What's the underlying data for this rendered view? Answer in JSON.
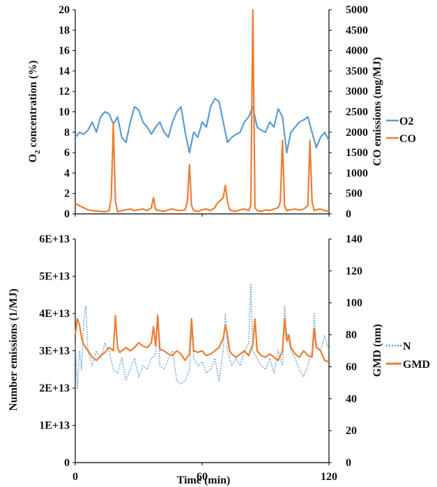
{
  "colors": {
    "blue": "#5b9bd5",
    "orange": "#ed7d31",
    "axis": "#000000"
  },
  "shared_xlabel": "Time (min)",
  "chart_data": [
    {
      "type": "line",
      "x_ticks": [
        "0",
        "60",
        "120"
      ],
      "xlim": [
        0,
        120
      ],
      "ylabel_left_main": "O",
      "ylabel_left_sub": "2",
      "ylabel_left_rest": " concentration (%)",
      "ylabel_right": "CO emissions (mg/MJ)",
      "y_left_ticks": [
        "0",
        "2",
        "4",
        "6",
        "8",
        "10",
        "12",
        "14",
        "16",
        "18",
        "20"
      ],
      "ylim_left": [
        0,
        20
      ],
      "y_right_ticks": [
        "0",
        "500",
        "1000",
        "1500",
        "2000",
        "2500",
        "3000",
        "3500",
        "4000",
        "4500",
        "5000"
      ],
      "ylim_right": [
        0,
        5000
      ],
      "legend_position": "right",
      "series": [
        {
          "name": "O2",
          "axis": "left",
          "style": "solid",
          "x": [
            0,
            2,
            4,
            6,
            8,
            10,
            12,
            14,
            16,
            18,
            20,
            22,
            24,
            26,
            28,
            30,
            32,
            34,
            36,
            38,
            40,
            42,
            44,
            46,
            48,
            50,
            52,
            54,
            56,
            58,
            60,
            62,
            64,
            66,
            68,
            70,
            72,
            74,
            76,
            78,
            80,
            82,
            84,
            86,
            88,
            90,
            92,
            94,
            96,
            98,
            100,
            102,
            104,
            106,
            108,
            110,
            112,
            114,
            116,
            118,
            120
          ],
          "values": [
            7.5,
            8,
            7.8,
            8.2,
            9,
            8,
            9.5,
            10,
            9.8,
            8.8,
            9.5,
            7.5,
            7,
            9,
            10.5,
            10.2,
            9,
            8.5,
            7.8,
            8.5,
            9,
            8,
            7.5,
            9,
            10,
            10.5,
            8,
            6,
            8,
            7.5,
            9,
            8.5,
            10.5,
            11.3,
            11,
            9,
            7,
            7.5,
            7.8,
            8,
            9,
            9.5,
            10.5,
            8.5,
            8.2,
            8,
            9,
            8.5,
            10.3,
            9.5,
            6,
            8,
            8.5,
            9,
            9.2,
            9.5,
            8,
            6.5,
            7.5,
            8,
            7.2
          ]
        },
        {
          "name": "CO",
          "axis": "right",
          "style": "solid",
          "x": [
            0,
            2,
            4,
            6,
            8,
            10,
            12,
            14,
            16,
            17,
            18,
            19,
            20,
            22,
            24,
            26,
            28,
            30,
            32,
            34,
            36,
            37,
            38,
            40,
            42,
            44,
            46,
            48,
            50,
            52,
            53,
            54,
            55,
            56,
            58,
            60,
            62,
            64,
            66,
            67,
            68,
            70,
            71,
            72,
            73,
            74,
            76,
            78,
            80,
            82,
            83,
            84,
            85,
            86,
            88,
            90,
            92,
            94,
            96,
            97,
            98,
            99,
            100,
            102,
            104,
            106,
            108,
            110,
            111,
            112,
            113,
            114,
            116,
            118,
            120
          ],
          "values": [
            250,
            200,
            150,
            100,
            80,
            70,
            60,
            50,
            80,
            400,
            2200,
            300,
            50,
            80,
            100,
            120,
            80,
            100,
            120,
            80,
            150,
            400,
            100,
            80,
            60,
            100,
            120,
            90,
            80,
            100,
            300,
            1200,
            200,
            80,
            60,
            100,
            120,
            80,
            150,
            250,
            300,
            400,
            700,
            300,
            100,
            80,
            60,
            100,
            120,
            80,
            200,
            5000,
            150,
            80,
            60,
            100,
            80,
            120,
            150,
            300,
            1800,
            200,
            80,
            100,
            120,
            90,
            120,
            200,
            1800,
            300,
            80,
            100,
            120,
            80,
            60
          ]
        }
      ]
    },
    {
      "type": "line",
      "x_ticks": [
        "0",
        "60",
        "120"
      ],
      "xlim": [
        0,
        120
      ],
      "ylabel_left": "Number emissions (1/MJ)",
      "ylabel_right": "GMD (nm)",
      "y_left_ticks": [
        "0",
        "1E+13",
        "2E+13",
        "3E+13",
        "4E+13",
        "5E+13",
        "6E+13"
      ],
      "ylim_left": [
        0,
        60000000000000.0
      ],
      "y_right_ticks": [
        "0",
        "20",
        "40",
        "60",
        "80",
        "100",
        "120",
        "140"
      ],
      "ylim_right": [
        0,
        140
      ],
      "legend_position": "right",
      "series": [
        {
          "name": "N",
          "axis": "left",
          "style": "dotted",
          "x": [
            0,
            1,
            2,
            3,
            4,
            5,
            6,
            8,
            10,
            12,
            14,
            16,
            18,
            20,
            22,
            24,
            26,
            28,
            30,
            32,
            34,
            36,
            38,
            39,
            40,
            42,
            44,
            46,
            48,
            50,
            52,
            54,
            55,
            56,
            58,
            60,
            62,
            64,
            66,
            68,
            70,
            71,
            72,
            74,
            76,
            78,
            80,
            82,
            83,
            84,
            86,
            88,
            90,
            92,
            94,
            96,
            98,
            99,
            100,
            102,
            104,
            106,
            108,
            110,
            112,
            113,
            114,
            116,
            118,
            120
          ],
          "values": [
            32000000000000.0,
            20000000000000.0,
            30000000000000.0,
            25000000000000.0,
            38000000000000.0,
            42000000000000.0,
            30000000000000.0,
            26000000000000.0,
            30000000000000.0,
            28000000000000.0,
            32000000000000.0,
            30000000000000.0,
            25000000000000.0,
            24000000000000.0,
            28000000000000.0,
            22000000000000.0,
            25000000000000.0,
            28000000000000.0,
            23000000000000.0,
            26000000000000.0,
            25000000000000.0,
            28000000000000.0,
            29000000000000.0,
            40000000000000.0,
            26000000000000.0,
            25000000000000.0,
            28000000000000.0,
            30000000000000.0,
            22000000000000.0,
            21000000000000.0,
            22000000000000.0,
            25000000000000.0,
            36000000000000.0,
            28000000000000.0,
            26000000000000.0,
            27000000000000.0,
            24000000000000.0,
            25000000000000.0,
            28000000000000.0,
            22000000000000.0,
            30000000000000.0,
            40000000000000.0,
            30000000000000.0,
            26000000000000.0,
            28000000000000.0,
            26000000000000.0,
            30000000000000.0,
            32000000000000.0,
            48000000000000.0,
            30000000000000.0,
            28000000000000.0,
            26000000000000.0,
            25000000000000.0,
            28000000000000.0,
            24000000000000.0,
            30000000000000.0,
            26000000000000.0,
            42000000000000.0,
            35000000000000.0,
            30000000000000.0,
            28000000000000.0,
            25000000000000.0,
            23000000000000.0,
            26000000000000.0,
            30000000000000.0,
            40000000000000.0,
            32000000000000.0,
            30000000000000.0,
            34000000000000.0,
            30000000000000.0
          ]
        },
        {
          "name": "GMD",
          "axis": "right",
          "style": "solid",
          "x": [
            0,
            1,
            2,
            3,
            4,
            6,
            8,
            10,
            12,
            14,
            16,
            18,
            19,
            20,
            21,
            22,
            24,
            26,
            28,
            30,
            32,
            34,
            36,
            37,
            38,
            39,
            40,
            42,
            44,
            46,
            48,
            50,
            52,
            54,
            55,
            56,
            58,
            60,
            62,
            64,
            66,
            68,
            70,
            71,
            72,
            73,
            74,
            76,
            78,
            80,
            82,
            84,
            85,
            86,
            88,
            90,
            92,
            94,
            96,
            98,
            99,
            100,
            101,
            102,
            104,
            106,
            108,
            110,
            112,
            113,
            114,
            116,
            118,
            120
          ],
          "values": [
            80,
            90,
            86,
            78,
            74,
            70,
            66,
            64,
            67,
            69,
            72,
            70,
            92,
            72,
            69,
            70,
            72,
            70,
            72,
            75,
            73,
            72,
            75,
            85,
            73,
            92,
            71,
            70,
            68,
            67,
            70,
            68,
            64,
            68,
            90,
            70,
            69,
            70,
            67,
            68,
            70,
            72,
            78,
            86,
            80,
            70,
            68,
            66,
            68,
            70,
            67,
            74,
            90,
            70,
            67,
            66,
            68,
            66,
            64,
            70,
            90,
            76,
            80,
            72,
            68,
            66,
            70,
            67,
            66,
            84,
            72,
            70,
            64,
            63
          ]
        }
      ]
    }
  ]
}
